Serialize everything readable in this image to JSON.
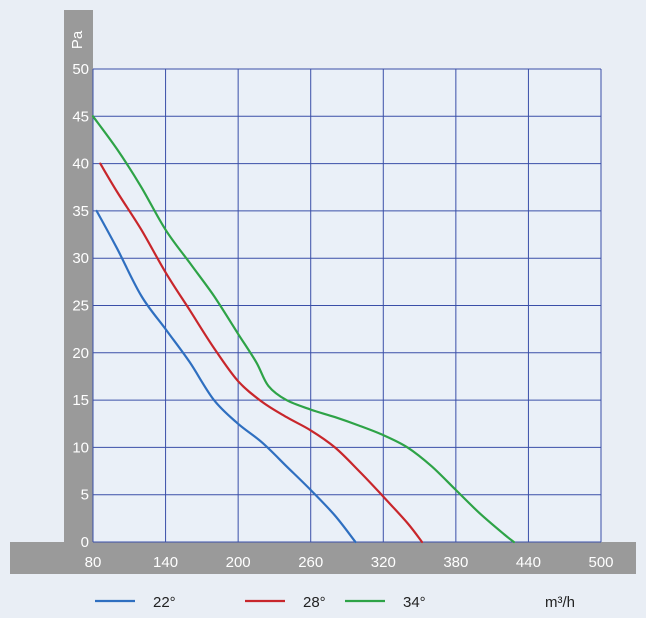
{
  "chart_data": {
    "type": "line",
    "xlabel": "m³/h",
    "ylabel": "Pa",
    "xlim": [
      80,
      500
    ],
    "ylim": [
      0,
      50
    ],
    "x_ticks": [
      80,
      140,
      200,
      260,
      320,
      380,
      440,
      500
    ],
    "y_ticks": [
      0,
      5,
      10,
      15,
      20,
      25,
      30,
      35,
      40,
      45,
      50
    ],
    "grid": true,
    "legend_position": "bottom",
    "series": [
      {
        "name": "22°",
        "color": "#2f6fc0",
        "x": [
          83,
          100,
          120,
          140,
          160,
          180,
          200,
          220,
          240,
          260,
          280,
          297
        ],
        "y": [
          35,
          31,
          26,
          22.5,
          19,
          15,
          12.5,
          10.5,
          8,
          5.5,
          2.8,
          0
        ]
      },
      {
        "name": "28°",
        "color": "#c8262b",
        "x": [
          86,
          100,
          120,
          140,
          160,
          180,
          200,
          220,
          240,
          260,
          280,
          300,
          320,
          340,
          352
        ],
        "y": [
          40,
          37,
          33,
          28.5,
          24.5,
          20.5,
          17,
          14.8,
          13.2,
          11.8,
          10,
          7.5,
          4.8,
          2,
          0
        ]
      },
      {
        "name": "34°",
        "color": "#2ea347",
        "x": [
          80,
          100,
          120,
          140,
          160,
          180,
          200,
          215,
          225,
          240,
          260,
          280,
          300,
          320,
          340,
          360,
          380,
          400,
          420,
          428
        ],
        "y": [
          45,
          41.5,
          37.5,
          33,
          29.5,
          26,
          22,
          19,
          16.5,
          15,
          14,
          13.2,
          12.3,
          11.3,
          10,
          8,
          5.5,
          3,
          0.8,
          0
        ]
      }
    ]
  }
}
